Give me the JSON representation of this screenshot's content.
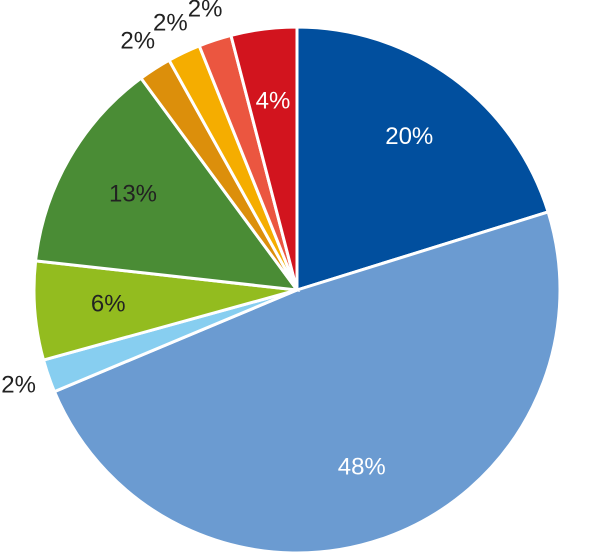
{
  "chart_data": {
    "type": "pie",
    "categories": [
      null,
      null,
      null,
      null,
      null,
      null,
      null,
      null,
      null
    ],
    "values": [
      20,
      48,
      2,
      6,
      13,
      2,
      2,
      2,
      4
    ],
    "value_labels": [
      "20%",
      "48%",
      "2%",
      "6%",
      "13%",
      "2%",
      "2%",
      "2%",
      "4%"
    ],
    "colors": [
      "#014f9e",
      "#6b9bd1",
      "#87cef0",
      "#93bc1f",
      "#4a8c35",
      "#dc8f0b",
      "#f5ad00",
      "#eb5640",
      "#d2141e"
    ],
    "label_colors": [
      "#ffffff",
      "#ffffff",
      "#222222",
      "#222222",
      "#222222",
      "#222222",
      "#222222",
      "#222222",
      "#ffffff"
    ]
  }
}
